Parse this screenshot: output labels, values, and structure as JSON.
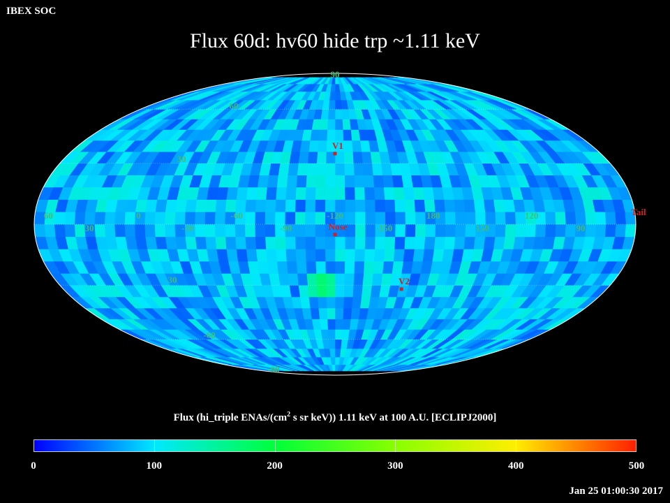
{
  "header": {
    "org_label": "IBEX SOC"
  },
  "footer": {
    "timestamp": "Jan 25 01:00:30 2017"
  },
  "chart_data": {
    "type": "heatmap",
    "projection": "mollweide",
    "title": "Flux   60d: hv60 hide trp ~1.11 keV",
    "colorbar_title": {
      "before_sup": "Flux (hi_triple ENAs/(cm",
      "sup": "2",
      "after_sup": " s sr keV))  1.11 keV at 100 A.U. [ECLIPJ2000]"
    },
    "colorbar": {
      "range": [
        0,
        500
      ],
      "ticks": [
        "0",
        "100",
        "200",
        "300",
        "400",
        "500"
      ],
      "stops": [
        {
          "value": 0,
          "color": "#0000ff"
        },
        {
          "value": 100,
          "color": "#00e8ff"
        },
        {
          "value": 200,
          "color": "#00ff3a"
        },
        {
          "value": 300,
          "color": "#88ff00"
        },
        {
          "value": 400,
          "color": "#ffee00"
        },
        {
          "value": 500,
          "color": "#ff2000"
        }
      ]
    },
    "grid_color": "#44bb77",
    "marker_color": "#cc2222",
    "gap_color": "#222222",
    "flux_typical_range": [
      40,
      120
    ],
    "longitude_labels": [
      "60",
      "30",
      "0",
      "-30",
      "-60",
      "-90",
      "-120",
      "-150",
      "180",
      "150",
      "120",
      "90"
    ],
    "latitude_labels": [
      "90",
      "60",
      "30",
      "-30",
      "-60",
      "-90"
    ],
    "markers": [
      {
        "label": "V1",
        "lon_offset": 0,
        "lat": 35
      },
      {
        "label": "Nose",
        "lon_offset": 0,
        "lat": -5
      },
      {
        "label": "V2",
        "lon_offset": -44,
        "lat": -32
      },
      {
        "label": "Tail",
        "lon_offset": 180,
        "lat": 5
      }
    ],
    "hot_spots": [
      {
        "lon_offset": 5,
        "lat": -33,
        "value": 190
      },
      {
        "lon_offset": -70,
        "lat": 28,
        "value": 130
      }
    ]
  }
}
